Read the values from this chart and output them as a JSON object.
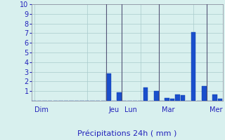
{
  "xlabel": "Précipitations 24h ( mm )",
  "background_color": "#d8f0ee",
  "bar_color": "#1a4fcc",
  "bar_edge_color": "#0a3aaa",
  "ylim": [
    0,
    10
  ],
  "yticks": [
    1,
    2,
    3,
    4,
    5,
    6,
    7,
    8,
    9,
    10
  ],
  "grid_color": "#aacccc",
  "day_labels": [
    "Dim",
    "Jeu",
    "Lun",
    "Mar",
    "Mer"
  ],
  "num_bars": 36,
  "bars": [
    0,
    0,
    0,
    0,
    0,
    0,
    0,
    0,
    0,
    0,
    0,
    0,
    0,
    0,
    2.8,
    0,
    0.9,
    0,
    0,
    0,
    0,
    1.4,
    0,
    1.0,
    0,
    0.3,
    0.2,
    0.65,
    0.6,
    0,
    7.1,
    0,
    1.5,
    0,
    0.65,
    0.2
  ],
  "label_color": "#2222bb",
  "xlabel_fontsize": 8,
  "ytick_fontsize": 7,
  "day_label_fontsize": 7,
  "vline_color": "#555577",
  "vline_lw": 0.8
}
